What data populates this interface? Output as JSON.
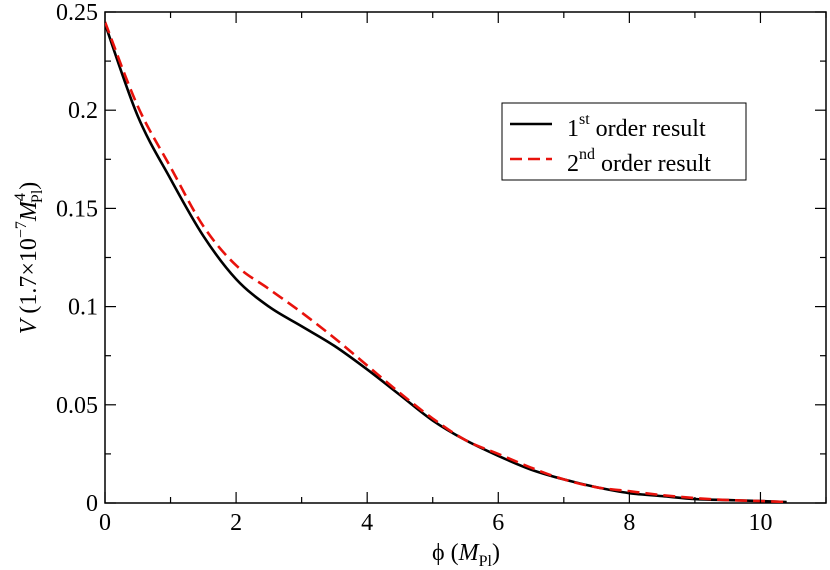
{
  "chart_data": {
    "type": "line",
    "xlabel": {
      "symbol": "ϕ (",
      "unit": "M",
      "sub": "Pl",
      "close": ")"
    },
    "ylabel": {
      "symbol": "V",
      "prefix": " (1.7×10",
      "exp": "−7",
      "unit": "M",
      "sub": "Pl",
      "sup": "4",
      "close": ")"
    },
    "xlim": [
      0,
      11
    ],
    "ylim": [
      0,
      0.25
    ],
    "xticks": [
      {
        "value": 0,
        "label": "0"
      },
      {
        "value": 2,
        "label": "2"
      },
      {
        "value": 4,
        "label": "4"
      },
      {
        "value": 6,
        "label": "6"
      },
      {
        "value": 8,
        "label": "8"
      },
      {
        "value": 10,
        "label": "10"
      }
    ],
    "yticks": [
      {
        "value": 0,
        "label": "0"
      },
      {
        "value": 0.05,
        "label": "0.05"
      },
      {
        "value": 0.1,
        "label": "0.1"
      },
      {
        "value": 0.15,
        "label": "0.15"
      },
      {
        "value": 0.2,
        "label": "0.2"
      },
      {
        "value": 0.25,
        "label": "0.25"
      }
    ],
    "x_minor_step": 1,
    "y_minor_step": 0.025,
    "grid": false,
    "legend_position": "top-right",
    "series": [
      {
        "name": "1st order result",
        "legend": {
          "num": "1",
          "sup": "st",
          "rest": " order result"
        },
        "color": "#000000",
        "dash": "solid",
        "x": [
          0,
          0.5,
          1.0,
          1.5,
          2.0,
          2.5,
          3.0,
          3.5,
          4.0,
          4.5,
          5.0,
          5.5,
          6.0,
          6.5,
          7.0,
          7.5,
          8.0,
          8.5,
          9.0,
          9.5,
          10.0,
          10.4
        ],
        "y": [
          0.244,
          0.197,
          0.165,
          0.136,
          0.114,
          0.1,
          0.09,
          0.08,
          0.068,
          0.055,
          0.042,
          0.032,
          0.024,
          0.017,
          0.012,
          0.008,
          0.005,
          0.0035,
          0.002,
          0.0015,
          0.001,
          0.0005
        ]
      },
      {
        "name": "2nd order result",
        "legend": {
          "num": "2",
          "sup": "nd",
          "rest": " order result"
        },
        "color": "#e8120c",
        "dash": "dashed",
        "x": [
          0,
          0.5,
          1.0,
          1.5,
          2.0,
          2.5,
          3.0,
          3.5,
          4.0,
          4.5,
          5.0,
          5.5,
          6.0,
          6.5,
          7.0,
          7.5,
          8.0,
          8.5,
          9.0,
          9.5,
          10.0,
          10.4
        ],
        "y": [
          0.245,
          0.202,
          0.171,
          0.141,
          0.121,
          0.109,
          0.097,
          0.084,
          0.07,
          0.056,
          0.043,
          0.032,
          0.025,
          0.018,
          0.012,
          0.008,
          0.006,
          0.004,
          0.0025,
          0.0015,
          0.001,
          0.0005
        ]
      }
    ]
  }
}
